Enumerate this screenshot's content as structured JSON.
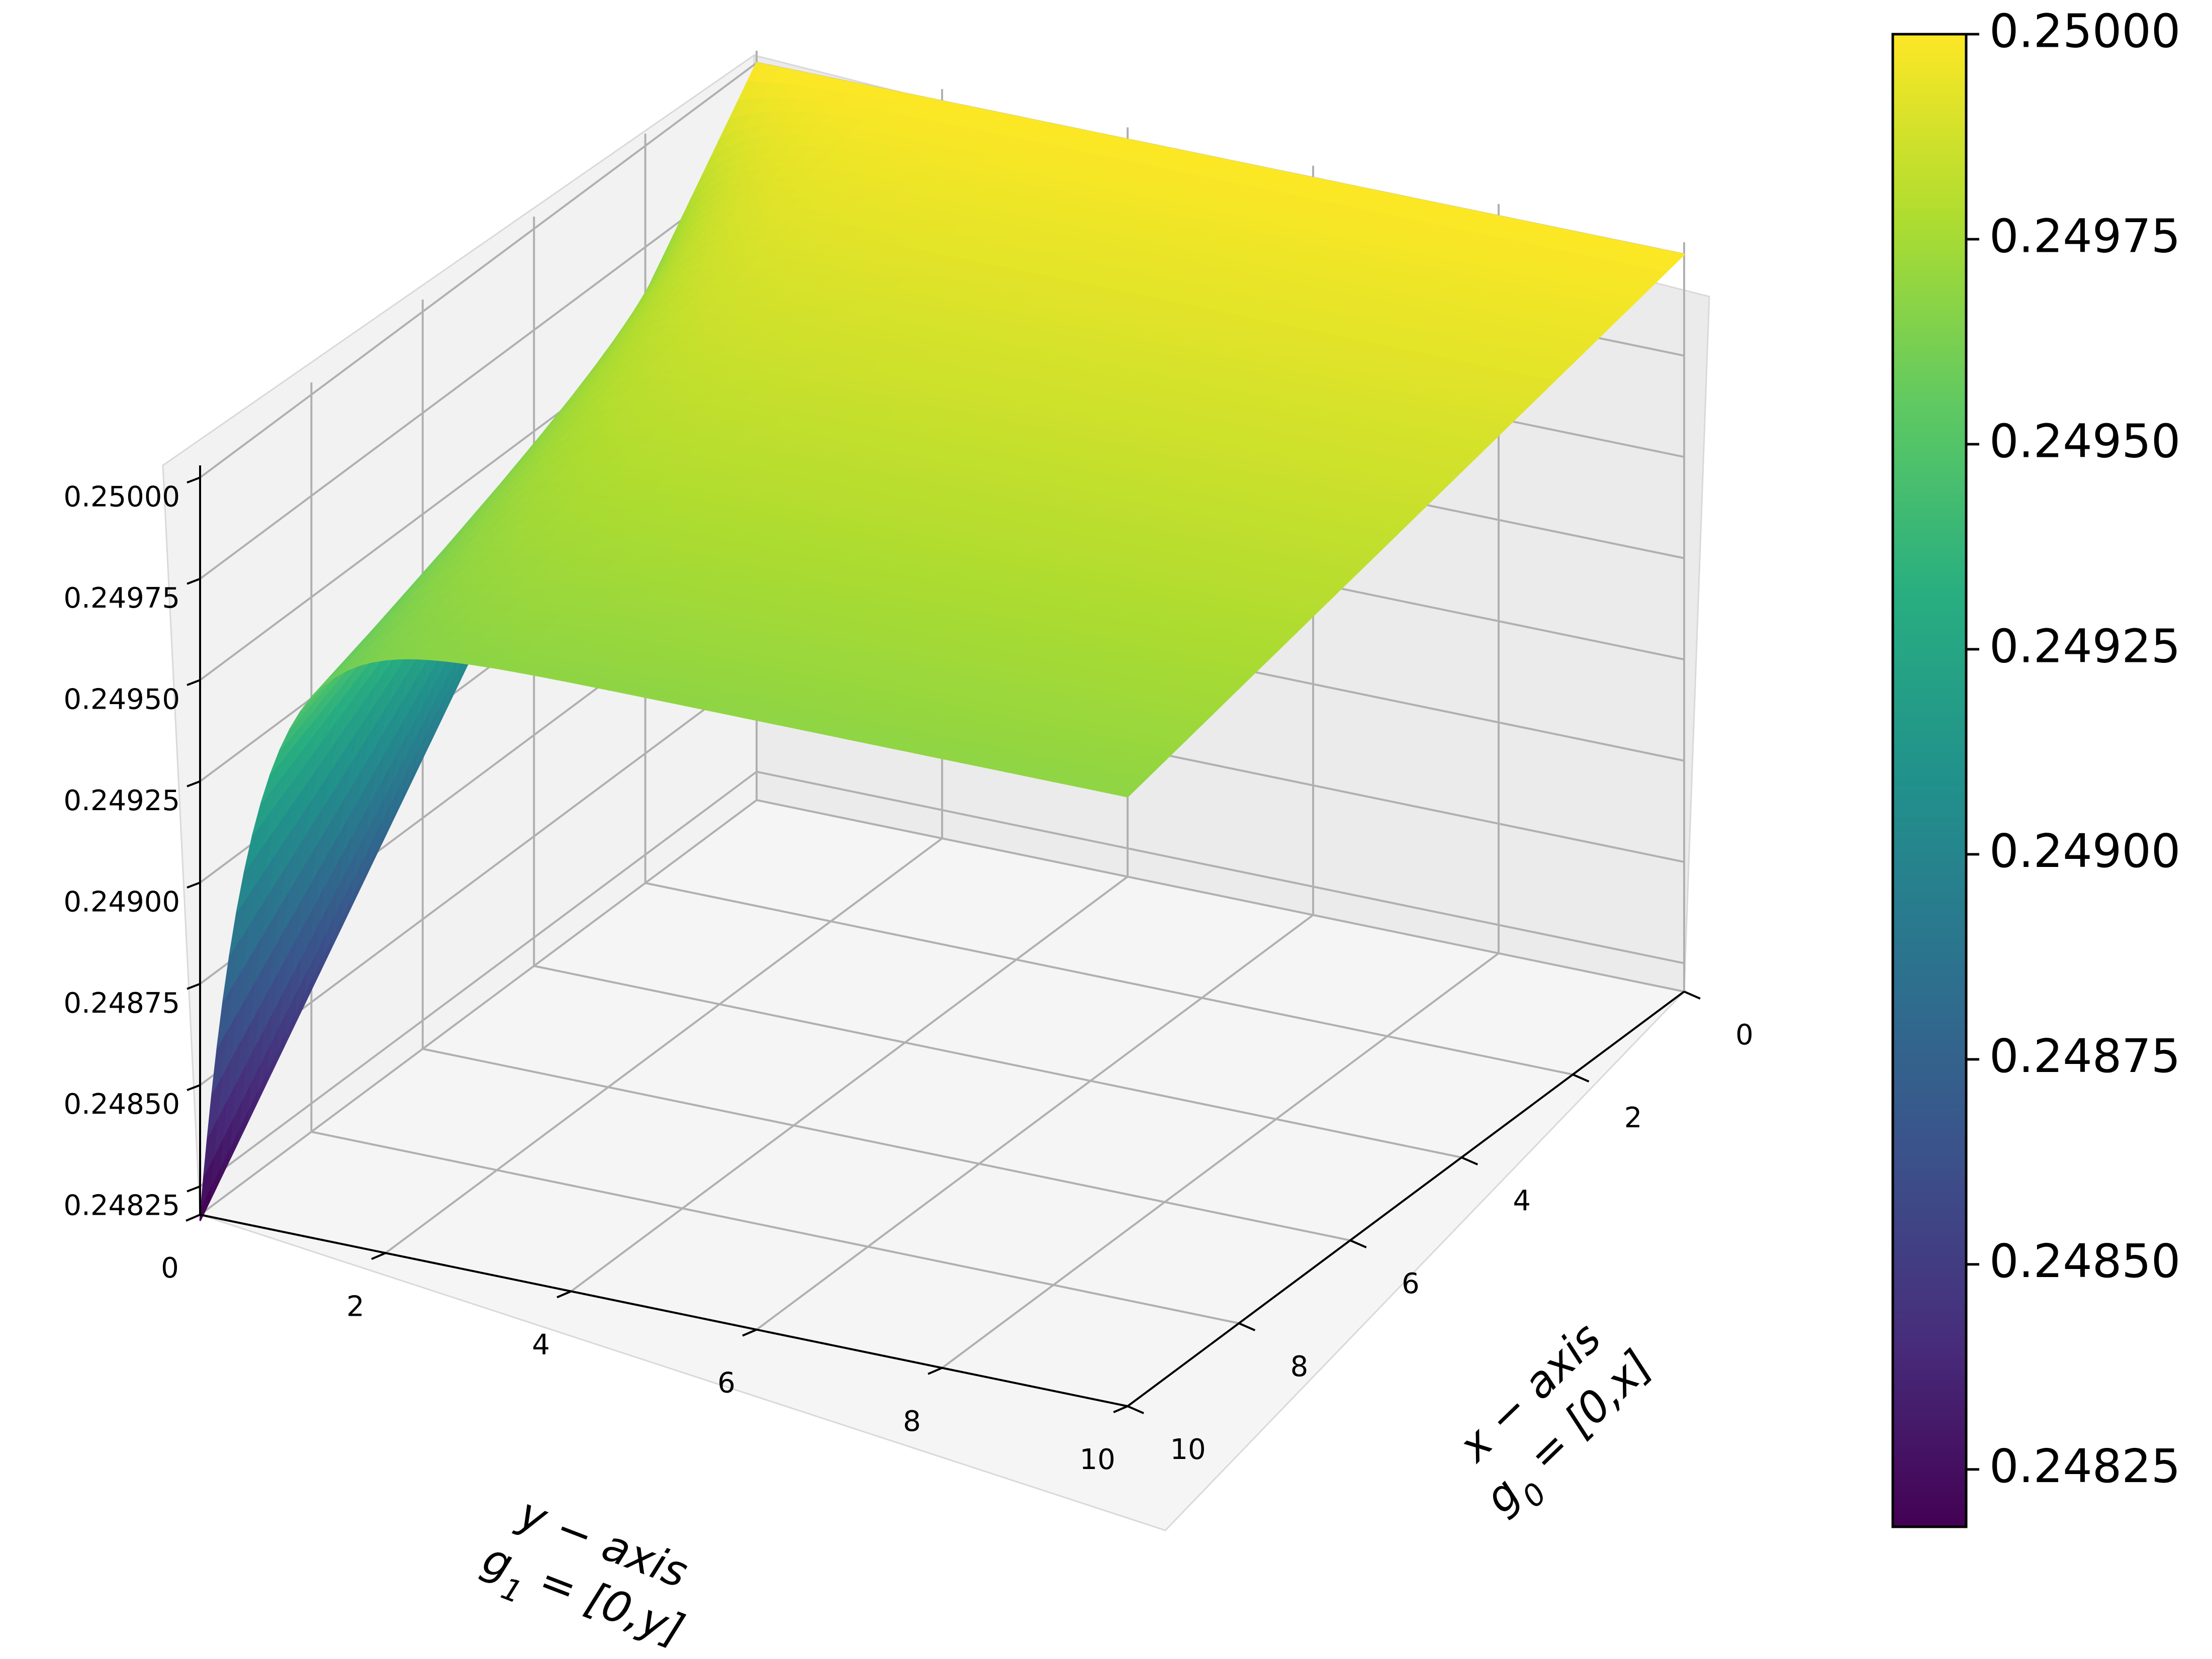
{
  "chart_data": {
    "type": "scatter",
    "subtype": "3d-surface-scatter",
    "colormap": "viridis",
    "x_axis": {
      "label_line1": "x − axis",
      "label_line2_base": "g",
      "label_line2_sub": "0",
      "label_line2_rest": " = [0,x]",
      "range": [
        0,
        10
      ],
      "ticks": [
        "0",
        "2",
        "4",
        "6",
        "8",
        "10"
      ]
    },
    "y_axis": {
      "label_line1": "y − axis",
      "label_line2_base": "g",
      "label_line2_sub": "1",
      "label_line2_rest": " = [0,y]",
      "range": [
        0,
        10
      ],
      "ticks": [
        "0",
        "2",
        "4",
        "6",
        "8",
        "10"
      ]
    },
    "z_axis": {
      "range": [
        0.24818,
        0.25003
      ],
      "ticks": [
        "0.24825",
        "0.24850",
        "0.24875",
        "0.24900",
        "0.24925",
        "0.24950",
        "0.24975",
        "0.25000"
      ]
    },
    "colorbar": {
      "range": [
        0.24818,
        0.25
      ],
      "ticks": [
        "0.24825",
        "0.24850",
        "0.24875",
        "0.24900",
        "0.24925",
        "0.24950",
        "0.24975",
        "0.25000"
      ]
    },
    "surface_samples": [
      {
        "x": 10,
        "y": 0,
        "z": 0.24818
      },
      {
        "x": 10,
        "y": 1,
        "z": 0.24915
      },
      {
        "x": 10,
        "y": 2,
        "z": 0.24945
      },
      {
        "x": 10,
        "y": 6,
        "z": 0.24962
      },
      {
        "x": 10,
        "y": 10,
        "z": 0.2497
      },
      {
        "x": 0,
        "y": 0,
        "z": 0.25
      },
      {
        "x": 0,
        "y": 10,
        "z": 0.25
      },
      {
        "x": 5,
        "y": 10,
        "z": 0.24975
      }
    ],
    "grid": true
  }
}
